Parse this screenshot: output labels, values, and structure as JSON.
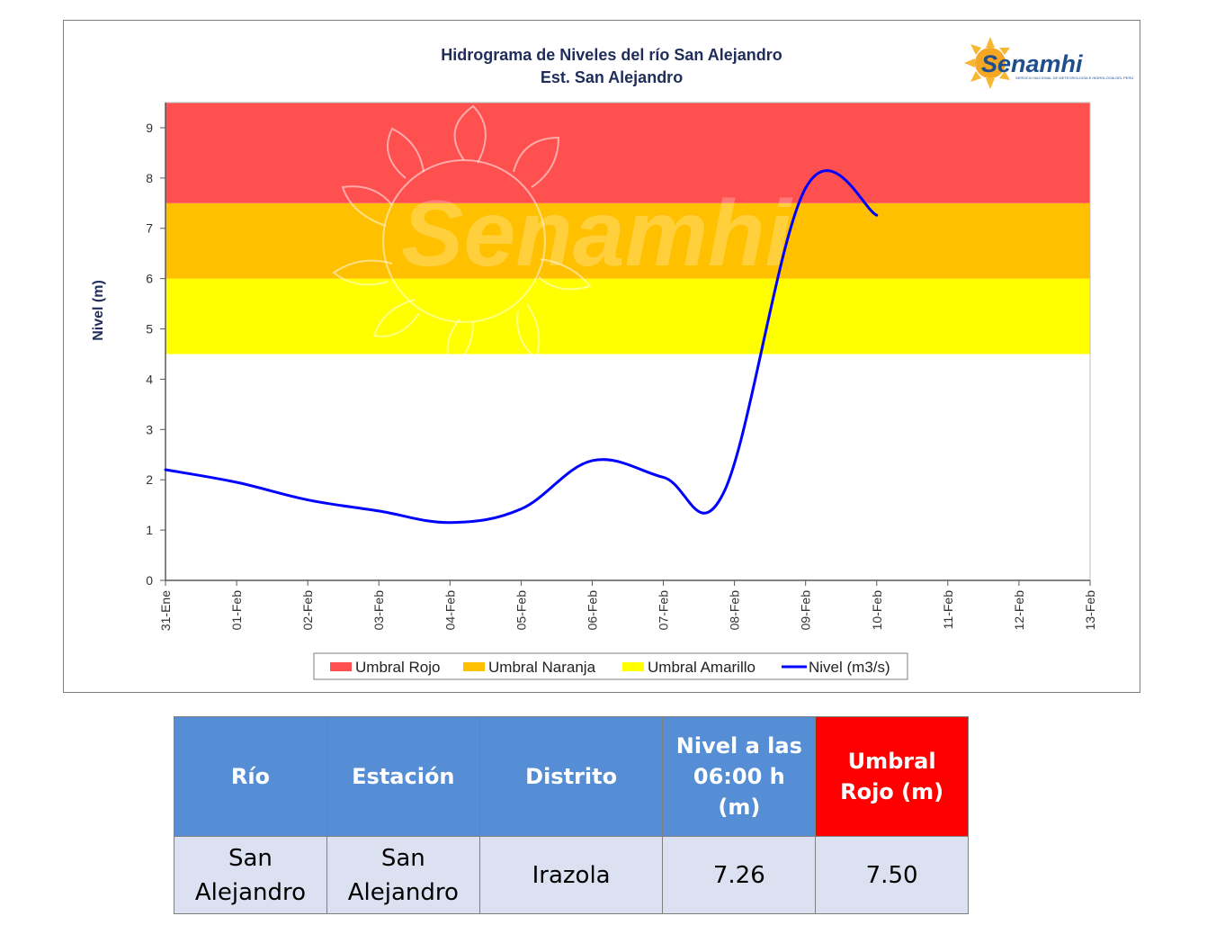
{
  "chart_data": {
    "type": "line",
    "title": [
      "Hidrograma  de Niveles  del río San Alejandro",
      "Est. San Alejandro"
    ],
    "ylabel": "Nivel (m)",
    "xlabel": "",
    "ylim": [
      0,
      9.5
    ],
    "yticks": [
      0,
      1,
      2,
      3,
      4,
      5,
      6,
      7,
      8,
      9
    ],
    "categories": [
      "31-Ene",
      "01-Feb",
      "02-Feb",
      "03-Feb",
      "04-Feb",
      "05-Feb",
      "06-Feb",
      "07-Feb",
      "08-Feb",
      "09-Feb",
      "10-Feb",
      "11-Feb",
      "12-Feb",
      "13-Feb"
    ],
    "bands": [
      {
        "name": "Umbral Amarillo",
        "from": 4.5,
        "to": 6.0,
        "color": "#ffff00"
      },
      {
        "name": "Umbral Naranja",
        "from": 6.0,
        "to": 7.5,
        "color": "#ffc000"
      },
      {
        "name": "Umbral Rojo",
        "from": 7.5,
        "to": 9.5,
        "color": "#ff5050"
      }
    ],
    "series": [
      {
        "name": "Nivel (m3/s)",
        "color": "#0000ff",
        "x": [
          0,
          1,
          2,
          3,
          4,
          5,
          6,
          7,
          7.85,
          9,
          10
        ],
        "values": [
          2.2,
          1.95,
          1.6,
          1.38,
          1.15,
          1.42,
          2.38,
          2.05,
          1.75,
          7.8,
          7.26
        ]
      }
    ],
    "legend": [
      "Umbral Rojo",
      "Umbral Naranja",
      "Umbral Amarillo",
      "Nivel (m3/s)"
    ],
    "legend_position": "bottom",
    "grid": false
  },
  "watermark": "Senamhi",
  "logo": {
    "name": "Senamhi",
    "subtitle": "SERVICIO NACIONAL DE METEOROLOGÍA E HIDROLOGÍA DEL PERÚ",
    "icon": "sun-icon"
  },
  "table": {
    "headers": [
      "Río",
      "Estación",
      "Distrito",
      "Nivel a las 06:00 h (m)",
      "Umbral Rojo (m)"
    ],
    "row": [
      "San Alejandro",
      "San Alejandro",
      "Irazola",
      "7.26",
      "7.50"
    ]
  }
}
